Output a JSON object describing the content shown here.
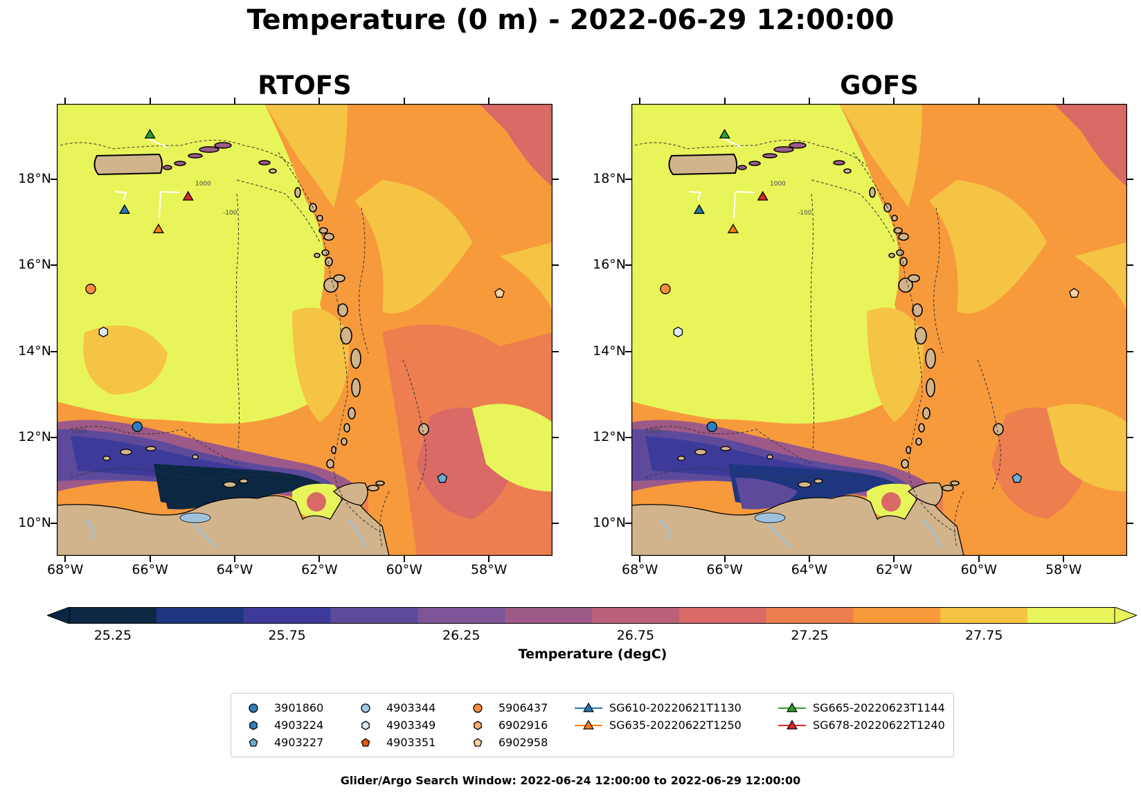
{
  "title": "Temperature (0 m) - 2022-06-29 12:00:00",
  "panels": [
    {
      "title": "RTOFS",
      "id": "rtofs"
    },
    {
      "title": "GOFS",
      "id": "gofs"
    }
  ],
  "axes": {
    "x_ticks": [
      "68°W",
      "66°W",
      "64°W",
      "62°W",
      "60°W",
      "58°W"
    ],
    "y_ticks": [
      "18°N",
      "16°N",
      "14°N",
      "12°N",
      "10°N"
    ],
    "lon_range": [
      -68.2,
      -56.5
    ],
    "lat_range": [
      9.25,
      19.75
    ]
  },
  "contour_labels": [
    "1000",
    "-100",
    "1000"
  ],
  "colorbar": {
    "label": "Temperature (degC)",
    "ticks": [
      "25.25",
      "25.75",
      "26.25",
      "26.75",
      "27.25",
      "27.75"
    ],
    "colors": [
      "#0b2742",
      "#1e3680",
      "#3d3a9a",
      "#5d4a9a",
      "#7e5596",
      "#9d5a88",
      "#bb6079",
      "#d96a66",
      "#ed7e4f",
      "#f79a3c",
      "#f5c444",
      "#e8f55a"
    ],
    "extend_low": "#0b2742",
    "extend_high": "#e8f55a"
  },
  "map_colors": {
    "land": "#d2b48c",
    "lake": "#9ec2dd",
    "deep_anomaly": "#0b2742"
  },
  "markers": [
    {
      "id": "3901860",
      "shape": "circle",
      "color": "#2f7fbf",
      "lon": -66.3,
      "lat": 12.25
    },
    {
      "id": "4903224",
      "shape": "hexagon",
      "color": "#2f7fbf",
      "lon": null,
      "lat": null
    },
    {
      "id": "4903227",
      "shape": "pentagon",
      "color": "#6aaed6",
      "lon": -59.1,
      "lat": 11.05
    },
    {
      "id": "4903344",
      "shape": "circle",
      "color": "#9ecae1",
      "lon": null,
      "lat": null
    },
    {
      "id": "4903349",
      "shape": "hexagon",
      "color": "#deebf7",
      "lon": -67.1,
      "lat": 14.45
    },
    {
      "id": "4903351",
      "shape": "pentagon",
      "color": "#e6550d",
      "lon": null,
      "lat": null
    },
    {
      "id": "5906437",
      "shape": "circle",
      "color": "#fd8d3c",
      "lon": -67.4,
      "lat": 15.45
    },
    {
      "id": "6902916",
      "shape": "hexagon",
      "color": "#fdae6b",
      "lon": null,
      "lat": null
    },
    {
      "id": "6902958",
      "shape": "pentagon",
      "color": "#fdd0a2",
      "lon": -57.75,
      "lat": 15.35
    }
  ],
  "gliders": [
    {
      "id": "SG610-20220621T1130",
      "color": "#1f77b4",
      "lon": -66.6,
      "lat": 17.27
    },
    {
      "id": "SG635-20220622T1250",
      "color": "#ff7f0e",
      "lon": -65.8,
      "lat": 16.82
    },
    {
      "id": "SG665-20220623T1144",
      "color": "#2ca02c",
      "lon": -66.0,
      "lat": 19.02
    },
    {
      "id": "SG678-20220622T1240",
      "color": "#d62728",
      "lon": -65.1,
      "lat": 17.58
    }
  ],
  "legend_columns": [
    [
      "3901860",
      "4903224",
      "4903227"
    ],
    [
      "4903344",
      "4903349",
      "4903351"
    ],
    [
      "5906437",
      "6902916",
      "6902958"
    ],
    [
      "SG610-20220621T1130",
      "SG635-20220622T1250"
    ],
    [
      "SG665-20220623T1144",
      "SG678-20220622T1240"
    ]
  ],
  "footer": "Glider/Argo Search Window: 2022-06-24 12:00:00 to 2022-06-29 12:00:00"
}
